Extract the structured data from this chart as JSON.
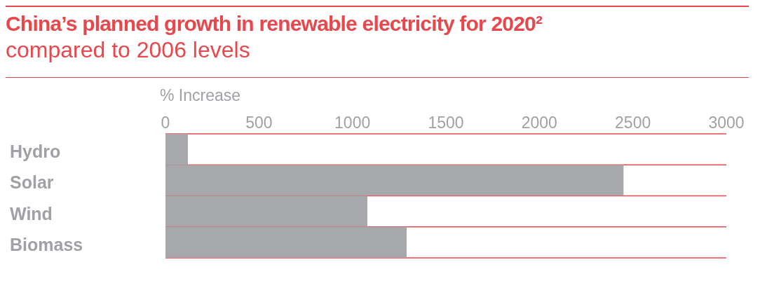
{
  "chart_data": {
    "type": "bar",
    "orientation": "horizontal",
    "title": "China’s planned growth in renewable electricity for 2020²",
    "subtitle": "compared to 2006 levels",
    "xlabel": "% Increase",
    "categories": [
      "Hydro",
      "Solar",
      "Wind",
      "Biomass"
    ],
    "values": [
      120,
      2450,
      1080,
      1290
    ],
    "color": "#a7a8ac",
    "xlim": [
      0,
      3000
    ],
    "xticks": [
      0,
      500,
      1000,
      1500,
      2000,
      2500,
      3000
    ],
    "grid": "y"
  }
}
